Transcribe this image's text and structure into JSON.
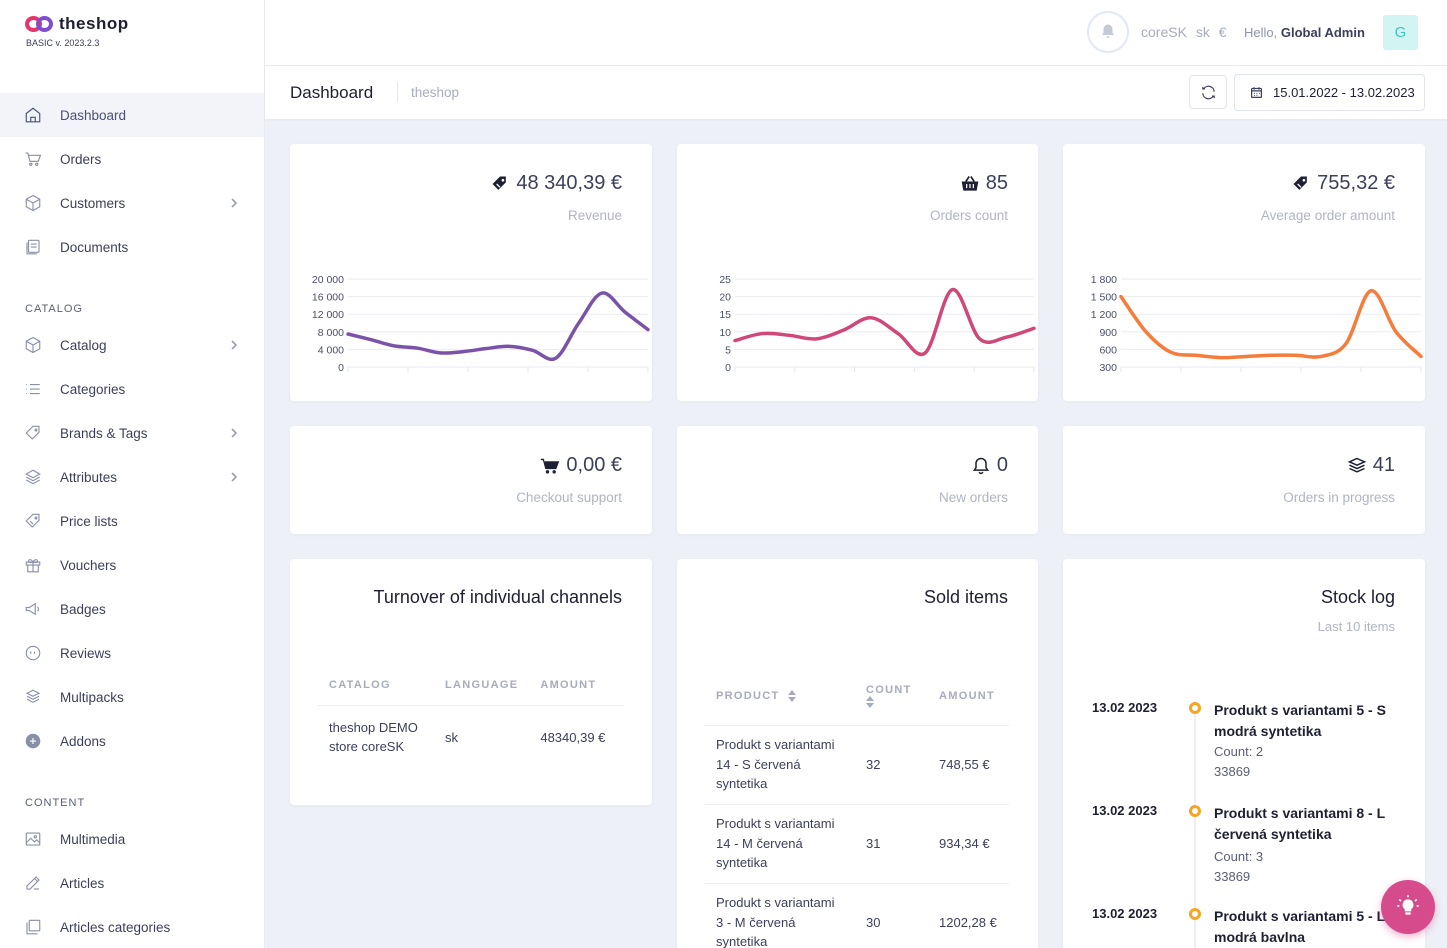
{
  "brand": {
    "name": "theshop",
    "version": "BASIC v. 2023.2.3"
  },
  "sidebar": {
    "items_main": [
      {
        "label": "Dashboard",
        "icon": "home-icon",
        "active": true
      },
      {
        "label": "Orders",
        "icon": "cart-icon"
      },
      {
        "label": "Customers",
        "icon": "box-icon",
        "chevron": true
      },
      {
        "label": "Documents",
        "icon": "documents-icon"
      }
    ],
    "section_catalog": "CATALOG",
    "items_catalog": [
      {
        "label": "Catalog",
        "icon": "box-icon",
        "chevron": true
      },
      {
        "label": "Categories",
        "icon": "list-icon"
      },
      {
        "label": "Brands & Tags",
        "icon": "tag-icon",
        "chevron": true
      },
      {
        "label": "Attributes",
        "icon": "layers-icon",
        "chevron": true
      },
      {
        "label": "Price lists",
        "icon": "price-tag-icon"
      },
      {
        "label": "Vouchers",
        "icon": "gift-icon"
      },
      {
        "label": "Badges",
        "icon": "megaphone-icon"
      },
      {
        "label": "Reviews",
        "icon": "quote-icon"
      },
      {
        "label": "Multipacks",
        "icon": "multipack-icon"
      },
      {
        "label": "Addons",
        "icon": "plus-circle-icon"
      }
    ],
    "section_content": "CONTENT",
    "items_content": [
      {
        "label": "Multimedia",
        "icon": "image-icon"
      },
      {
        "label": "Articles",
        "icon": "edit-icon"
      },
      {
        "label": "Articles categories",
        "icon": "folders-icon"
      }
    ]
  },
  "topbar": {
    "store": "coreSK",
    "language": "sk",
    "currency": "€",
    "hello_prefix": "Hello,",
    "user_name": "Global Admin",
    "avatar_letter": "G"
  },
  "subheader": {
    "title": "Dashboard",
    "breadcrumb": "theshop",
    "date_range": "15.01.2022 - 13.02.2023"
  },
  "kpis": {
    "revenue": {
      "value": "48 340,39 €",
      "label": "Revenue"
    },
    "orders": {
      "value": "85",
      "label": "Orders count"
    },
    "avg": {
      "value": "755,32 €",
      "label": "Average order amount"
    },
    "checkout": {
      "value": "0,00 €",
      "label": "Checkout support"
    },
    "new_orders": {
      "value": "0",
      "label": "New orders"
    },
    "in_progress": {
      "value": "41",
      "label": "Orders in progress"
    }
  },
  "chart_data": [
    {
      "type": "line",
      "name": "revenue-chart",
      "color": "#7b52a8",
      "yticks": [
        "20 000",
        "16 000",
        "12 000",
        "8 000",
        "4 000",
        "0"
      ],
      "ylim": [
        0,
        20000
      ],
      "values": [
        7500,
        6200,
        4800,
        4300,
        3200,
        3500,
        4200,
        4700,
        3800,
        2000,
        10000,
        16800,
        12500,
        8500
      ]
    },
    {
      "type": "line",
      "name": "orders-chart",
      "color": "#d0477a",
      "yticks": [
        "25",
        "20",
        "15",
        "10",
        "5",
        "0"
      ],
      "ylim": [
        0,
        25
      ],
      "values": [
        7.5,
        9.5,
        9,
        8,
        10.5,
        14,
        9.5,
        4,
        22,
        8,
        8.5,
        11
      ]
    },
    {
      "type": "line",
      "name": "avg-chart",
      "color": "#f57c3a",
      "yticks": [
        "1 800",
        "1 500",
        "1 200",
        "900",
        "600",
        "300"
      ],
      "ylim": [
        300,
        1800
      ],
      "values": [
        1500,
        900,
        550,
        500,
        460,
        480,
        500,
        500,
        480,
        700,
        1600,
        900,
        480
      ]
    }
  ],
  "channels": {
    "title": "Turnover of individual channels",
    "headers": [
      "CATALOG",
      "LANGUAGE",
      "AMOUNT"
    ],
    "rows": [
      {
        "catalog": "theshop DEMO store coreSK",
        "language": "sk",
        "amount": "48340,39 €"
      }
    ]
  },
  "sold": {
    "title": "Sold items",
    "headers": [
      "PRODUCT",
      "COUNT",
      "AMOUNT"
    ],
    "rows": [
      {
        "product": "Produkt s variantami 14 - S červená syntetika",
        "count": "32",
        "amount": "748,55 €"
      },
      {
        "product": "Produkt s variantami 14 - M červená syntetika",
        "count": "31",
        "amount": "934,34 €"
      },
      {
        "product": "Produkt s variantami 3 - M červená syntetika",
        "count": "30",
        "amount": "1202,28 €"
      }
    ]
  },
  "stock": {
    "title": "Stock log",
    "subtitle": "Last 10 items",
    "items": [
      {
        "date": "13.02 2023",
        "title": "Produkt s variantami 5 - S modrá syntetika",
        "count": "Count: 2",
        "code": "33869"
      },
      {
        "date": "13.02 2023",
        "title": "Produkt s variantami 8 - L červená syntetika",
        "count": "Count: 3",
        "code": "33869"
      },
      {
        "date": "13.02 2023",
        "title": "Produkt s variantami 5 - L modrá bavlna",
        "count": "",
        "code": ""
      }
    ]
  }
}
